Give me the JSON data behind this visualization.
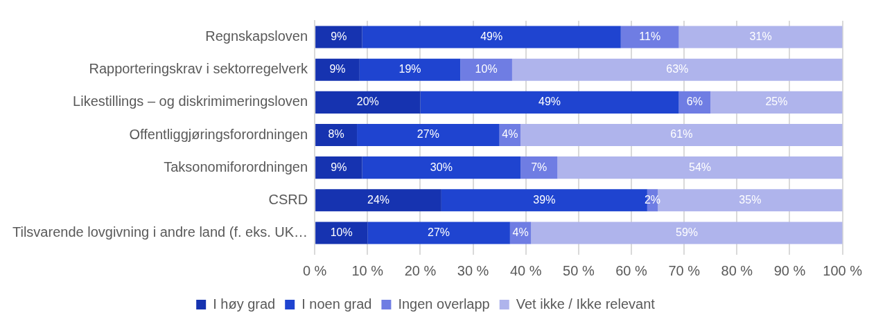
{
  "chart_data": {
    "type": "bar",
    "orientation": "horizontal",
    "stacked": true,
    "categories": [
      "Regnskapsloven",
      "Rapporteringskrav i sektorregelverk",
      "Likestillings – og diskrimimeringsloven",
      "Offentliggjøringsforordningen",
      "Taksonomiforordningen",
      "CSRD",
      "Tilsvarende lovgivning i andre land (f. eks. UK…"
    ],
    "series": [
      {
        "name": "I høy grad",
        "color": "#1633b0",
        "values": [
          9,
          8.5,
          20,
          8,
          9,
          24,
          10
        ],
        "value_labels": [
          "9%",
          "9%",
          "20%",
          "8%",
          "9%",
          "24%",
          "10%"
        ]
      },
      {
        "name": "I noen grad",
        "color": "#1f44d0",
        "values": [
          49,
          19.1,
          49,
          27,
          30,
          39,
          27
        ],
        "value_labels": [
          "49%",
          "19%",
          "49%",
          "27%",
          "30%",
          "39%",
          "27%"
        ]
      },
      {
        "name": "Ingen overlapp",
        "color": "#6f7de3",
        "values": [
          11,
          9.8,
          6,
          4,
          7,
          2,
          4
        ],
        "value_labels": [
          "11%",
          "10%",
          "6%",
          "4%",
          "7%",
          "2%",
          "4%"
        ]
      },
      {
        "name": "Vet ikke / Ikke relevant",
        "color": "#afb4ec",
        "values": [
          31,
          62.6,
          25,
          61,
          54,
          35,
          59
        ],
        "value_labels": [
          "31%",
          "63%",
          "25%",
          "61%",
          "54%",
          "35%",
          "59%"
        ]
      }
    ],
    "xlim": [
      0,
      100
    ],
    "xticks": [
      {
        "value": 0,
        "label": "0 %"
      },
      {
        "value": 10,
        "label": "10 %"
      },
      {
        "value": 20,
        "label": "20 %"
      },
      {
        "value": 30,
        "label": "30 %"
      },
      {
        "value": 40,
        "label": "40 %"
      },
      {
        "value": 50,
        "label": "50 %"
      },
      {
        "value": 60,
        "label": "60 %"
      },
      {
        "value": 70,
        "label": "70 %"
      },
      {
        "value": 80,
        "label": "80 %"
      },
      {
        "value": 90,
        "label": "90 %"
      },
      {
        "value": 100,
        "label": "100 %"
      }
    ],
    "grid": "x",
    "legend": "bottom"
  }
}
